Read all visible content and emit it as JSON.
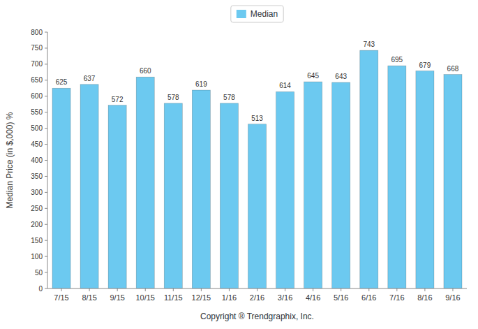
{
  "chart_data": {
    "type": "bar",
    "categories": [
      "7/15",
      "8/15",
      "9/15",
      "10/15",
      "11/15",
      "12/15",
      "1/16",
      "2/16",
      "3/16",
      "4/16",
      "5/16",
      "6/16",
      "7/16",
      "8/16",
      "9/16"
    ],
    "series": [
      {
        "name": "Median",
        "color": "#6CC9F0",
        "values": [
          625,
          637,
          572,
          660,
          578,
          619,
          578,
          513,
          614,
          645,
          643,
          743,
          695,
          679,
          668
        ]
      }
    ],
    "x_label": "Copyright ® Trendgraphix, Inc.",
    "y_label": "Median Price (in $,000) %",
    "ylim": [
      0,
      800
    ],
    "yticks": [
      0,
      50,
      100,
      150,
      200,
      250,
      300,
      350,
      400,
      450,
      500,
      550,
      600,
      650,
      700,
      750,
      800
    ],
    "grid": false,
    "legend": "top",
    "data_labels": true
  }
}
